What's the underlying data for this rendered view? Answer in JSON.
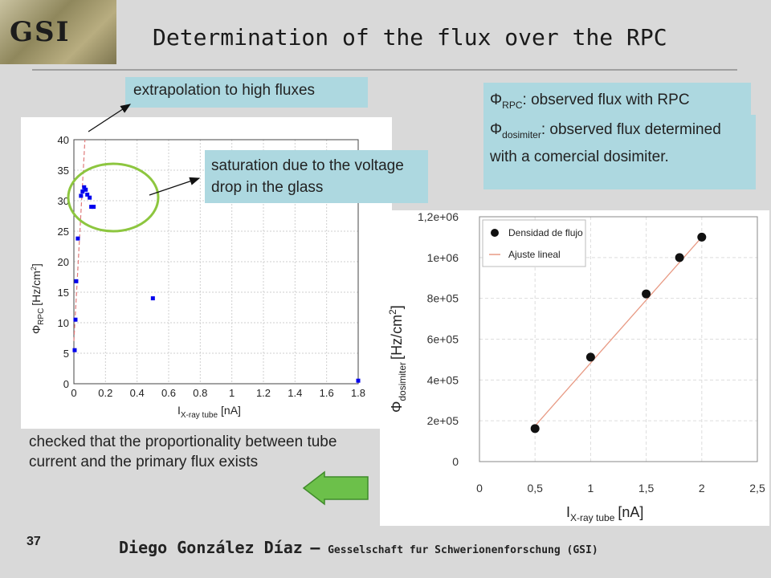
{
  "logo": {
    "text": "GSI"
  },
  "slide": {
    "title": "Determination of the flux over the RPC",
    "number": "37",
    "footer_name": "Diego González Díaz",
    "footer_sep": "–",
    "footer_org": "Gesselschaft fur Schwerionenforschung (GSI)"
  },
  "callouts": {
    "extrapolation": "extrapolation to high fluxes",
    "saturation": "saturation due to the voltage drop in the glass",
    "phi_rpc_prefix": "Φ",
    "phi_rpc_sub": "RPC",
    "phi_rpc_text": ": observed flux with RPC",
    "phi_dos_prefix": "Φ",
    "phi_dos_sub": "dosimiter",
    "phi_dos_text": ": observed flux determined with a comercial dosimiter."
  },
  "note": "checked that the proportionality between tube current and the primary flux exists",
  "colors": {
    "callout": "#add8e0",
    "marker_blue": "#0000ee",
    "ellipse": "#8dc63f",
    "fit_line": "#e89a84",
    "arrow": "#4caf50"
  },
  "chart_data": [
    {
      "type": "scatter",
      "x_ticks": [
        "0",
        "0.2",
        "0.4",
        "0.6",
        "0.8",
        "1",
        "1.2",
        "1.4",
        "1.6",
        "1.8"
      ],
      "y_ticks": [
        "0",
        "5",
        "10",
        "15",
        "20",
        "25",
        "30",
        "35",
        "40"
      ],
      "xlim": [
        0,
        1.8
      ],
      "ylim": [
        0,
        40
      ],
      "xlabel_main": "I",
      "xlabel_sub": "X-ray tube",
      "xlabel_unit": "[nA]",
      "ylabel_main": "Φ",
      "ylabel_sub": "RPC",
      "ylabel_unit": "[Hz/cm",
      "ylabel_sup": "2",
      "ylabel_close": "]",
      "grid": true,
      "points": [
        {
          "x": 0.005,
          "y": 5.5
        },
        {
          "x": 0.01,
          "y": 10.5
        },
        {
          "x": 0.015,
          "y": 16.8
        },
        {
          "x": 0.025,
          "y": 23.8
        },
        {
          "x": 0.045,
          "y": 30.8
        },
        {
          "x": 0.055,
          "y": 31.5
        },
        {
          "x": 0.065,
          "y": 32.2
        },
        {
          "x": 0.075,
          "y": 31.8
        },
        {
          "x": 0.085,
          "y": 31.0
        },
        {
          "x": 0.1,
          "y": 30.5
        },
        {
          "x": 0.11,
          "y": 29.0
        },
        {
          "x": 0.125,
          "y": 29.0
        },
        {
          "x": 0.5,
          "y": 14.0
        },
        {
          "x": 1.8,
          "y": 0.5
        }
      ],
      "fit_line": [
        {
          "x": 0.0,
          "y": 7.0
        },
        {
          "x": 0.07,
          "y": 40.0
        }
      ]
    },
    {
      "type": "scatter",
      "x_ticks": [
        "0",
        "0,5",
        "1",
        "1,5",
        "2",
        "2,5"
      ],
      "y_ticks": [
        "0",
        "2e+05",
        "4e+05",
        "6e+05",
        "8e+05",
        "1e+06",
        "1,2e+06"
      ],
      "xlim": [
        0,
        2.5
      ],
      "ylim": [
        0,
        1200000
      ],
      "xlabel_main": "I",
      "xlabel_sub": "X-ray tube",
      "xlabel_unit": "[nA]",
      "ylabel_main": "Φ",
      "ylabel_sub": "dosimiter",
      "ylabel_unit": "[Hz/cm",
      "ylabel_sup": "2",
      "ylabel_close": "]",
      "legend_position": "top-left",
      "series": [
        {
          "name": "Densidad de flujo",
          "points": [
            {
              "x": 0.5,
              "y": 162000
            },
            {
              "x": 1.0,
              "y": 512000
            },
            {
              "x": 1.5,
              "y": 822000
            },
            {
              "x": 1.8,
              "y": 1000000
            },
            {
              "x": 2.0,
              "y": 1100000
            }
          ]
        },
        {
          "name": "Ajuste lineal",
          "line": [
            {
              "x": 0.5,
              "y": 175000
            },
            {
              "x": 2.0,
              "y": 1100000
            }
          ]
        }
      ]
    }
  ]
}
